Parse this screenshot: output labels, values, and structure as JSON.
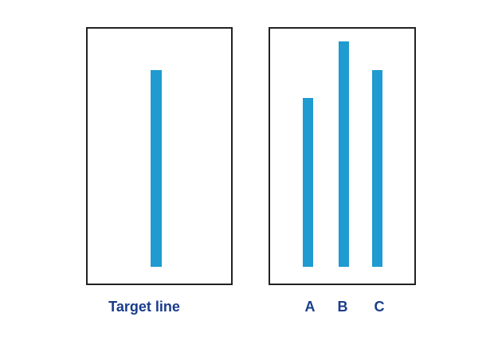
{
  "target_panel": {
    "label": "Target line",
    "line_length": 247
  },
  "comparison_panel": {
    "lines": [
      {
        "label": "A",
        "length": 212
      },
      {
        "label": "B",
        "length": 283
      },
      {
        "label": "C",
        "length": 247
      }
    ]
  },
  "colors": {
    "line": "#1f9bd1",
    "label": "#1a3c8c",
    "frame": "#222222"
  }
}
